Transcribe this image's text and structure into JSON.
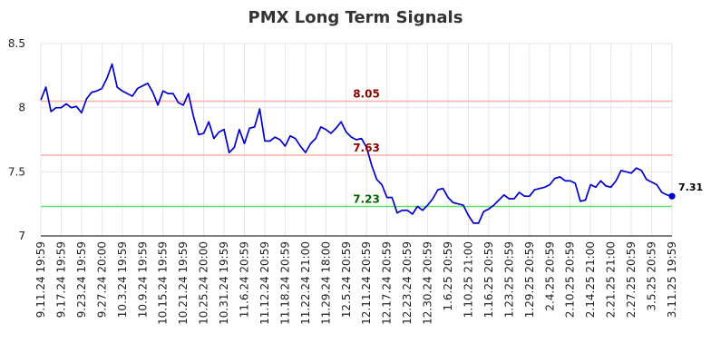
{
  "chart_data": {
    "type": "line",
    "title": "PMX Long Term Signals",
    "xlabel": "",
    "ylabel": "",
    "ylim": [
      7,
      8.5
    ],
    "yticks": [
      "7",
      "7.5",
      "8",
      "8.5"
    ],
    "grid": true,
    "x_tick_labels": [
      "9.11.24 19:59",
      "9.17.24 19:59",
      "9.23.24 19:59",
      "9.27.24 20:00",
      "10.3.24 19:59",
      "10.9.24 19:59",
      "10.15.24 19:59",
      "10.21.24 19:59",
      "10.25.24 20:00",
      "10.31.24 19:59",
      "11.6.24 20:59",
      "11.12.24 20:59",
      "11.18.24 20:59",
      "11.22.24 21:00",
      "11.29.24 18:00",
      "12.5.24 20:59",
      "12.11.24 20:59",
      "12.17.24 20:59",
      "12.23.24 20:59",
      "12.30.24 20:59",
      "1.6.25 20:59",
      "1.10.25 21:00",
      "1.16.25 20:59",
      "1.23.25 20:59",
      "1.29.25 20:59",
      "2.4.25 20:59",
      "2.10.25 20:59",
      "2.14.25 21:00",
      "2.21.25 21:00",
      "2.27.25 20:59",
      "3.5.25 20:59",
      "3.11.25 19:59"
    ],
    "series": [
      {
        "color": "#0000cc",
        "values": [
          8.06,
          8.16,
          7.97,
          8.0,
          8.0,
          8.03,
          8.0,
          8.01,
          7.96,
          8.07,
          8.12,
          8.13,
          8.15,
          8.23,
          8.34,
          8.16,
          8.13,
          8.11,
          8.09,
          8.15,
          8.17,
          8.19,
          8.12,
          8.02,
          8.13,
          8.11,
          8.11,
          8.04,
          8.02,
          8.11,
          7.93,
          7.79,
          7.8,
          7.89,
          7.76,
          7.81,
          7.83,
          7.65,
          7.69,
          7.83,
          7.72,
          7.84,
          7.85,
          7.99,
          7.74,
          7.74,
          7.77,
          7.75,
          7.7,
          7.78,
          7.76,
          7.7,
          7.65,
          7.72,
          7.76,
          7.85,
          7.83,
          7.8,
          7.84,
          7.89,
          7.81,
          7.77,
          7.75,
          7.76,
          7.69,
          7.55,
          7.44,
          7.4,
          7.3,
          7.3,
          7.18,
          7.2,
          7.2,
          7.17,
          7.23,
          7.2,
          7.24,
          7.29,
          7.36,
          7.37,
          7.3,
          7.26,
          7.25,
          7.24,
          7.16,
          7.1,
          7.1,
          7.19,
          7.21,
          7.24,
          7.28,
          7.32,
          7.29,
          7.29,
          7.34,
          7.31,
          7.31,
          7.36,
          7.37,
          7.38,
          7.4,
          7.45,
          7.46,
          7.43,
          7.43,
          7.41,
          7.27,
          7.28,
          7.4,
          7.38,
          7.43,
          7.39,
          7.38,
          7.43,
          7.51,
          7.5,
          7.49,
          7.53,
          7.51,
          7.44,
          7.42,
          7.4,
          7.34,
          7.32,
          7.31
        ]
      }
    ],
    "reference_lines": [
      {
        "value": 8.05,
        "label": "8.05",
        "line_color": "#ffb3b3",
        "label_color": "#8b0000"
      },
      {
        "value": 7.63,
        "label": "7.63",
        "line_color": "#ffb3b3",
        "label_color": "#8b0000"
      },
      {
        "value": 7.23,
        "label": "7.23",
        "line_color": "#66dd66",
        "label_color": "#006400"
      }
    ],
    "last_value_label": "7.31"
  }
}
